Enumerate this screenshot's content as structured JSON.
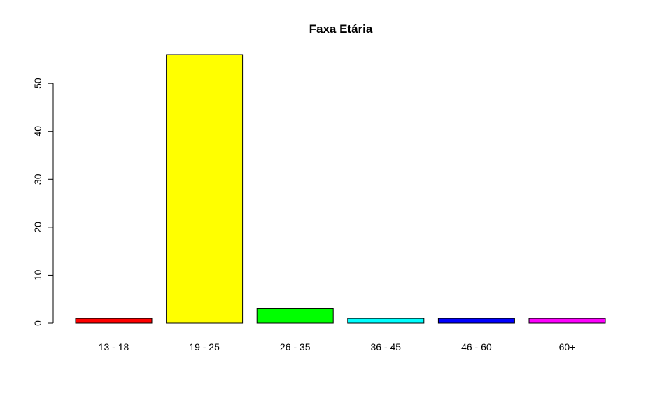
{
  "chart_data": {
    "type": "bar",
    "title": "Faxa Etária",
    "xlabel": "",
    "ylabel": "",
    "categories": [
      "13 - 18",
      "19 - 25",
      "26 - 35",
      "36 - 45",
      "46 - 60",
      "60+"
    ],
    "values": [
      1,
      56,
      3,
      1,
      1,
      1
    ],
    "colors": [
      "#ff0000",
      "#ffff00",
      "#00ff00",
      "#00ffff",
      "#0000ff",
      "#ff00ff"
    ],
    "yticks": [
      0,
      10,
      20,
      30,
      40,
      50
    ],
    "ylim": [
      0,
      56
    ],
    "grid": false,
    "legend": "none"
  }
}
